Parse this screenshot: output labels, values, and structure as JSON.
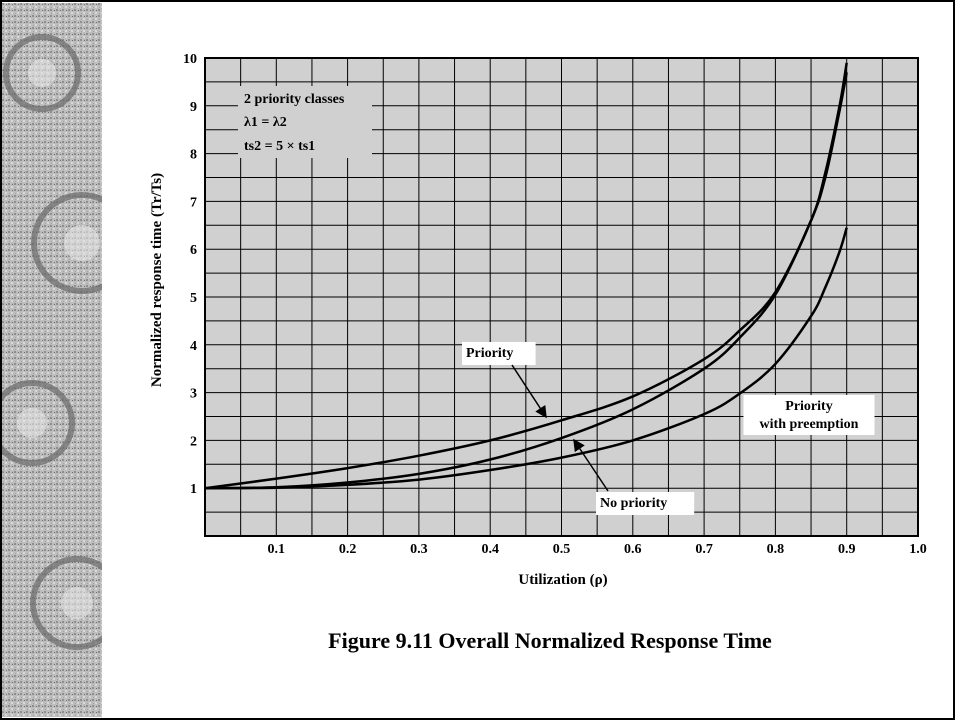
{
  "caption": "Figure 9.11 Overall Normalized Response Time",
  "chart_data": {
    "type": "line",
    "xlabel": "Utilization (ρ)",
    "ylabel": "Normalized response time (Tr/Ts)",
    "xlim": [
      0,
      1.0
    ],
    "ylim": [
      0,
      10
    ],
    "x_ticks": [
      "0.1",
      "0.2",
      "0.3",
      "0.4",
      "0.5",
      "0.6",
      "0.7",
      "0.8",
      "0.9",
      "1.0"
    ],
    "y_ticks": [
      "1",
      "2",
      "3",
      "4",
      "5",
      "6",
      "7",
      "8",
      "9",
      "10"
    ],
    "grid": true,
    "info_box": [
      "2 priority classes",
      "λ1 = λ2",
      "ts2 = 5 × ts1"
    ],
    "series": [
      {
        "name": "Priority",
        "x": [
          0,
          0.1,
          0.2,
          0.3,
          0.4,
          0.5,
          0.6,
          0.7,
          0.75,
          0.8,
          0.85,
          0.87,
          0.89,
          0.9
        ],
        "y": [
          1,
          1.2,
          1.42,
          1.68,
          2.0,
          2.42,
          2.92,
          3.7,
          4.3,
          5.1,
          6.6,
          7.6,
          9.0,
          9.9
        ]
      },
      {
        "name": "No priority",
        "x": [
          0,
          0.1,
          0.2,
          0.3,
          0.4,
          0.5,
          0.6,
          0.7,
          0.75,
          0.8,
          0.85,
          0.87,
          0.89,
          0.9
        ],
        "y": [
          1,
          1.02,
          1.12,
          1.3,
          1.6,
          2.05,
          2.65,
          3.5,
          4.15,
          5.05,
          6.6,
          7.5,
          8.9,
          9.7
        ]
      },
      {
        "name": "Priority with preemption",
        "x": [
          0,
          0.1,
          0.2,
          0.3,
          0.4,
          0.5,
          0.6,
          0.7,
          0.75,
          0.8,
          0.85,
          0.87,
          0.89,
          0.9
        ],
        "y": [
          1,
          1.01,
          1.07,
          1.18,
          1.38,
          1.64,
          2.0,
          2.55,
          2.98,
          3.6,
          4.6,
          5.2,
          5.95,
          6.45
        ]
      }
    ],
    "annotations": [
      {
        "label": "Priority",
        "series": "Priority"
      },
      {
        "label": "No priority",
        "series": "No priority"
      },
      {
        "label": "Priority\nwith preemption",
        "series": "Priority with preemption"
      }
    ]
  }
}
